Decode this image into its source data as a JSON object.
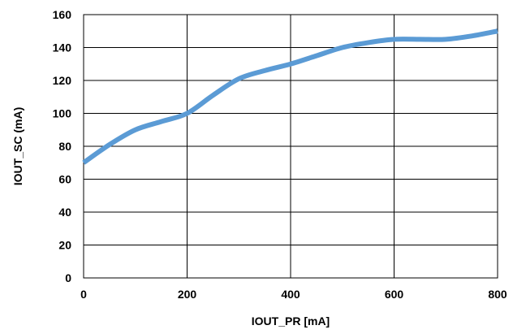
{
  "chart_data": {
    "type": "line",
    "xlabel": "IOUT_PR [mA]",
    "ylabel": "IOUT_SC (mA)",
    "xlim": [
      0,
      800
    ],
    "ylim": [
      0,
      160
    ],
    "xticks": [
      0,
      200,
      400,
      600,
      800
    ],
    "yticks": [
      0,
      20,
      40,
      60,
      80,
      100,
      120,
      140,
      160
    ],
    "grid": true,
    "series": [
      {
        "color": "#5b9bd5",
        "x": [
          0,
          50,
          100,
          150,
          200,
          250,
          300,
          350,
          400,
          450,
          500,
          550,
          600,
          650,
          700,
          750,
          800
        ],
        "y": [
          70,
          81,
          90,
          95,
          100,
          111,
          121,
          126,
          130,
          135,
          140,
          143,
          145,
          145,
          145,
          147,
          150
        ]
      }
    ]
  }
}
